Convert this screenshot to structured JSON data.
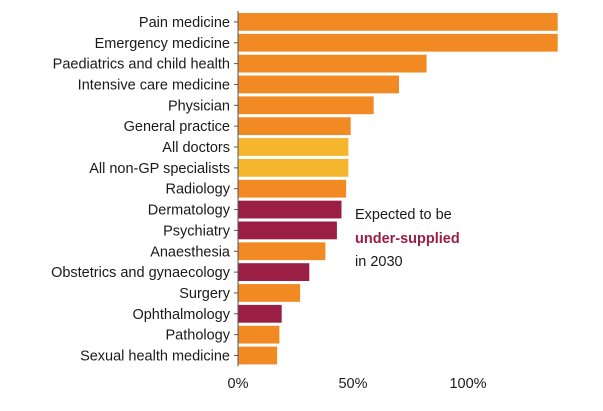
{
  "chart_data": {
    "type": "bar",
    "orientation": "horizontal",
    "categories": [
      "Pain medicine",
      "Emergency medicine",
      "Paediatrics and child health",
      "Intensive care medicine",
      "Physician",
      "General practice",
      "All doctors",
      "All non-GP specialists",
      "Radiology",
      "Dermatology",
      "Psychiatry",
      "Anaesthesia",
      "Obstetrics and gynaecology",
      "Surgery",
      "Ophthalmology",
      "Pathology",
      "Sexual health medicine"
    ],
    "values": [
      139,
      139,
      82,
      70,
      59,
      49,
      48,
      48,
      47,
      45,
      43,
      38,
      31,
      27,
      19,
      18,
      17
    ],
    "bar_colors": [
      "#f28a24",
      "#f28a24",
      "#f28a24",
      "#f28a24",
      "#f28a24",
      "#f28a24",
      "#f5b62e",
      "#f5b62e",
      "#f28a24",
      "#9b1f45",
      "#9b1f45",
      "#f28a24",
      "#9b1f45",
      "#f28a24",
      "#9b1f45",
      "#f28a24",
      "#f28a24"
    ],
    "xlim": [
      0,
      140
    ],
    "ticks": [
      0,
      50,
      100
    ],
    "tick_labels": [
      "0%",
      "50%",
      "100%"
    ],
    "title": "",
    "xlabel": "",
    "ylabel": "",
    "grid": false,
    "annotation": {
      "line1": "Expected to be",
      "emphasis": "under-supplied",
      "line3": "in 2030",
      "emphasis_color": "#9b1f45"
    }
  }
}
